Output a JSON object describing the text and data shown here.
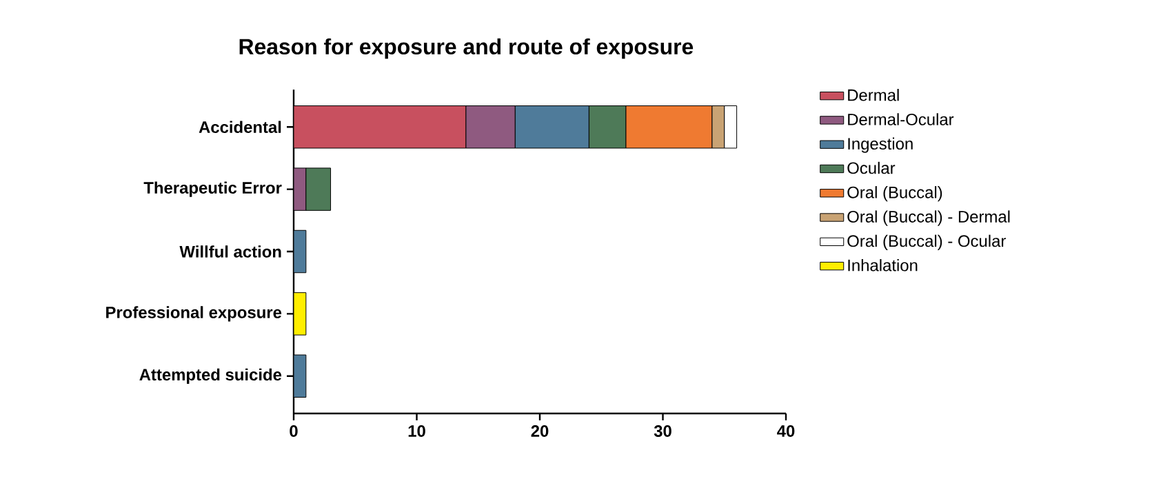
{
  "chart_data": {
    "type": "bar",
    "orientation": "horizontal",
    "stacked": true,
    "title": "Reason for exposure and route of exposure",
    "categories": [
      "Accidental",
      "Therapeutic Error",
      "Willful action",
      "Professional exposure",
      "Attempted suicide"
    ],
    "series": [
      {
        "name": "Dermal",
        "color": "#c8505f",
        "values": [
          14,
          null,
          null,
          null,
          null
        ]
      },
      {
        "name": "Dermal-Ocular",
        "color": "#8f5a80",
        "values": [
          4,
          1,
          null,
          null,
          null
        ]
      },
      {
        "name": "Ingestion",
        "color": "#4f7b9a",
        "values": [
          6,
          null,
          1,
          null,
          1
        ]
      },
      {
        "name": "Ocular",
        "color": "#4e7a58",
        "values": [
          3,
          2,
          null,
          null,
          null
        ]
      },
      {
        "name": "Oral (Buccal)",
        "color": "#ef7a31",
        "values": [
          7,
          null,
          null,
          null,
          null
        ]
      },
      {
        "name": "Oral (Buccal) - Dermal",
        "color": "#c9a374",
        "values": [
          1,
          null,
          null,
          null,
          null
        ]
      },
      {
        "name": "Oral (Buccal) - Ocular",
        "color": "#ffffff",
        "values": [
          1,
          null,
          null,
          null,
          null
        ]
      },
      {
        "name": "Inhalation",
        "color": "#ffee00",
        "values": [
          null,
          null,
          null,
          1,
          null
        ]
      }
    ],
    "xlim": [
      0,
      40
    ],
    "xticks": [
      0,
      10,
      20,
      30,
      40
    ],
    "legend": "right",
    "grid": false
  }
}
